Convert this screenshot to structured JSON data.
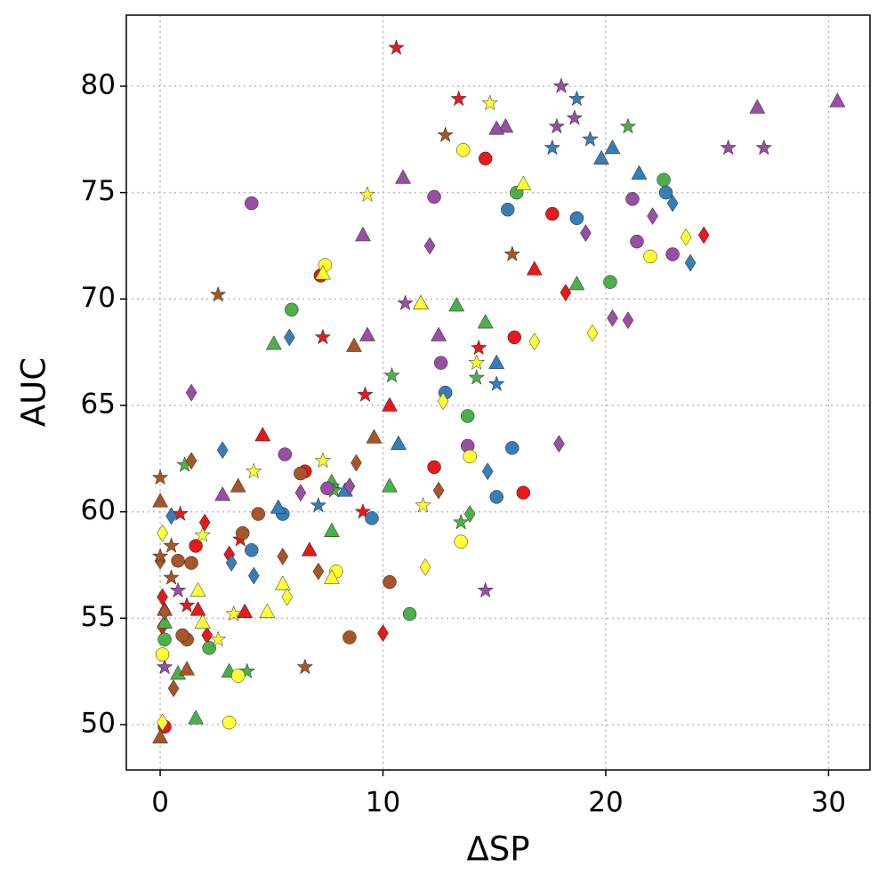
{
  "chart_data": {
    "type": "scatter",
    "xlabel": "ΔSP",
    "ylabel": "AUC",
    "xlim": [
      -1.52,
      31.86
    ],
    "ylim": [
      47.87,
      83.34
    ],
    "xticks": [
      0,
      10,
      20,
      30
    ],
    "yticks": [
      50,
      55,
      60,
      65,
      70,
      75,
      80
    ],
    "grid": true,
    "series": [
      {
        "color": "#e41a1c",
        "marker": "circle",
        "x": [
          7.2,
          14.6,
          17.6,
          15.9,
          12.3,
          16.3,
          6.5,
          1.6,
          0.2
        ],
        "y": [
          71.1,
          76.6,
          74.0,
          68.2,
          62.1,
          60.9,
          61.9,
          58.4,
          49.9
        ]
      },
      {
        "color": "#e41a1c",
        "marker": "triangle",
        "x": [
          10.3,
          4.6,
          6.7,
          3.8,
          1.7,
          16.8,
          11.7
        ],
        "y": [
          65.0,
          63.6,
          58.2,
          55.3,
          55.4,
          71.4,
          69.8
        ]
      },
      {
        "color": "#e41a1c",
        "marker": "diamond",
        "x": [
          24.4,
          18.2,
          10.0,
          3.1,
          2.0,
          0.1,
          0.1,
          2.1
        ],
        "y": [
          73.0,
          70.3,
          54.3,
          58.0,
          59.5,
          56.0,
          54.6,
          54.2
        ]
      },
      {
        "color": "#e41a1c",
        "marker": "star",
        "x": [
          10.6,
          13.4,
          7.3,
          9.2,
          14.3,
          9.1,
          3.6,
          0.9,
          1.2
        ],
        "y": [
          81.8,
          79.4,
          68.2,
          65.5,
          67.7,
          60.0,
          58.7,
          59.9,
          55.6
        ]
      },
      {
        "color": "#377eb8",
        "marker": "circle",
        "x": [
          15.6,
          18.7,
          22.7,
          12.8,
          15.8,
          15.1,
          9.5,
          5.5,
          4.1
        ],
        "y": [
          74.2,
          73.8,
          75.0,
          65.6,
          63.0,
          60.7,
          59.7,
          59.9,
          58.2
        ]
      },
      {
        "color": "#377eb8",
        "marker": "triangle",
        "x": [
          20.3,
          19.8,
          21.5,
          15.1,
          10.7,
          8.3,
          5.3
        ],
        "y": [
          77.1,
          76.6,
          75.9,
          67.0,
          63.2,
          61.0,
          60.2
        ]
      },
      {
        "color": "#377eb8",
        "marker": "diamond",
        "x": [
          23.0,
          23.8,
          5.8,
          2.8,
          14.7,
          4.2,
          3.2,
          0.5
        ],
        "y": [
          74.5,
          71.7,
          68.2,
          62.9,
          61.9,
          57.0,
          57.6,
          59.8
        ]
      },
      {
        "color": "#377eb8",
        "marker": "star",
        "x": [
          18.7,
          19.3,
          17.6,
          15.1,
          7.1,
          7.7
        ],
        "y": [
          79.4,
          77.5,
          77.1,
          66.0,
          60.3,
          61.2
        ]
      },
      {
        "color": "#4daf4a",
        "marker": "circle",
        "x": [
          22.6,
          16.0,
          20.2,
          5.9,
          13.8,
          11.2,
          2.2,
          0.2
        ],
        "y": [
          75.6,
          75.0,
          70.8,
          69.5,
          64.5,
          55.2,
          53.6,
          54.0
        ]
      },
      {
        "color": "#4daf4a",
        "marker": "triangle",
        "x": [
          18.7,
          13.3,
          14.6,
          5.1,
          10.3,
          7.7,
          7.7,
          1.6,
          3.1,
          0.8,
          0.2
        ],
        "y": [
          70.7,
          69.7,
          68.9,
          67.9,
          61.2,
          59.1,
          61.4,
          50.3,
          52.5,
          52.4,
          54.8
        ]
      },
      {
        "color": "#4daf4a",
        "marker": "diamond",
        "x": [
          13.9
        ],
        "y": [
          59.9
        ]
      },
      {
        "color": "#4daf4a",
        "marker": "star",
        "x": [
          21.0,
          10.4,
          14.2,
          13.5,
          7.8,
          3.9,
          1.1
        ],
        "y": [
          78.1,
          66.4,
          66.3,
          59.5,
          61.0,
          52.5,
          62.2
        ]
      },
      {
        "color": "#984ea3",
        "marker": "circle",
        "x": [
          4.1,
          12.3,
          21.2,
          21.4,
          23.0,
          12.6,
          13.8,
          5.6,
          7.5
        ],
        "y": [
          74.5,
          74.8,
          74.7,
          72.7,
          72.1,
          67.0,
          63.1,
          62.7,
          61.1
        ]
      },
      {
        "color": "#984ea3",
        "marker": "triangle",
        "x": [
          26.8,
          30.4,
          15.5,
          15.1,
          10.9,
          9.1,
          12.5,
          9.3,
          2.8
        ],
        "y": [
          79.0,
          79.3,
          78.1,
          78.0,
          75.7,
          73.0,
          68.3,
          68.3,
          60.8
        ]
      },
      {
        "color": "#984ea3",
        "marker": "diamond",
        "x": [
          22.1,
          19.1,
          12.1,
          20.3,
          21.0,
          1.4,
          17.9,
          6.3,
          8.5
        ],
        "y": [
          73.9,
          73.1,
          72.5,
          69.1,
          69.0,
          65.6,
          63.2,
          60.9,
          61.2
        ]
      },
      {
        "color": "#984ea3",
        "marker": "star",
        "x": [
          18.0,
          18.6,
          17.8,
          25.5,
          27.1,
          11.0,
          14.6,
          0.8,
          0.2
        ],
        "y": [
          80.0,
          78.5,
          78.1,
          77.1,
          77.1,
          69.8,
          56.3,
          56.3,
          52.7
        ]
      },
      {
        "color": "#ffff33",
        "marker": "circle",
        "x": [
          13.6,
          7.4,
          22.0,
          13.9,
          13.5,
          7.9,
          3.5,
          3.1,
          0.1
        ],
        "y": [
          77.0,
          71.6,
          72.0,
          62.6,
          58.6,
          57.2,
          52.3,
          50.1,
          53.3
        ]
      },
      {
        "color": "#ffff33",
        "marker": "triangle",
        "x": [
          16.3,
          7.3,
          11.7,
          4.8,
          5.5,
          1.7,
          7.7,
          1.9
        ],
        "y": [
          75.4,
          71.2,
          69.8,
          55.3,
          56.6,
          56.3,
          56.9,
          54.8
        ]
      },
      {
        "color": "#ffff33",
        "marker": "diamond",
        "x": [
          23.6,
          16.8,
          19.4,
          12.7,
          11.9,
          5.7,
          0.1,
          0.1
        ],
        "y": [
          72.9,
          68.0,
          68.4,
          65.2,
          57.4,
          56.0,
          59.0,
          50.1
        ]
      },
      {
        "color": "#ffff33",
        "marker": "star",
        "x": [
          14.8,
          9.3,
          14.2,
          7.3,
          4.2,
          11.8,
          1.9,
          3.3,
          2.6
        ],
        "y": [
          79.2,
          74.9,
          67.0,
          62.4,
          61.9,
          60.3,
          58.9,
          55.2,
          54.0
        ]
      },
      {
        "color": "#a65628",
        "marker": "circle",
        "x": [
          6.3,
          4.4,
          3.7,
          0.8,
          1.4,
          10.3,
          8.5,
          1.2,
          1.0
        ],
        "y": [
          61.8,
          59.9,
          59.0,
          57.7,
          57.6,
          56.7,
          54.1,
          54.0,
          54.2
        ]
      },
      {
        "color": "#a65628",
        "marker": "triangle",
        "x": [
          3.5,
          8.7,
          9.6,
          0.0,
          0.0,
          1.2,
          0.2
        ],
        "y": [
          61.2,
          67.8,
          63.5,
          60.5,
          49.4,
          52.6,
          55.4
        ]
      },
      {
        "color": "#a65628",
        "marker": "diamond",
        "x": [
          8.8,
          12.5,
          5.5,
          7.1,
          1.4,
          0.0,
          0.6,
          0.2
        ],
        "y": [
          62.3,
          61.0,
          57.9,
          57.2,
          62.4,
          57.7,
          51.7,
          55.3
        ]
      },
      {
        "color": "#a65628",
        "marker": "star",
        "x": [
          2.6,
          12.8,
          15.8,
          6.5,
          0.0,
          0.0,
          0.5,
          0.5
        ],
        "y": [
          70.2,
          77.7,
          72.1,
          52.7,
          61.6,
          57.9,
          58.4,
          56.9
        ]
      }
    ]
  }
}
